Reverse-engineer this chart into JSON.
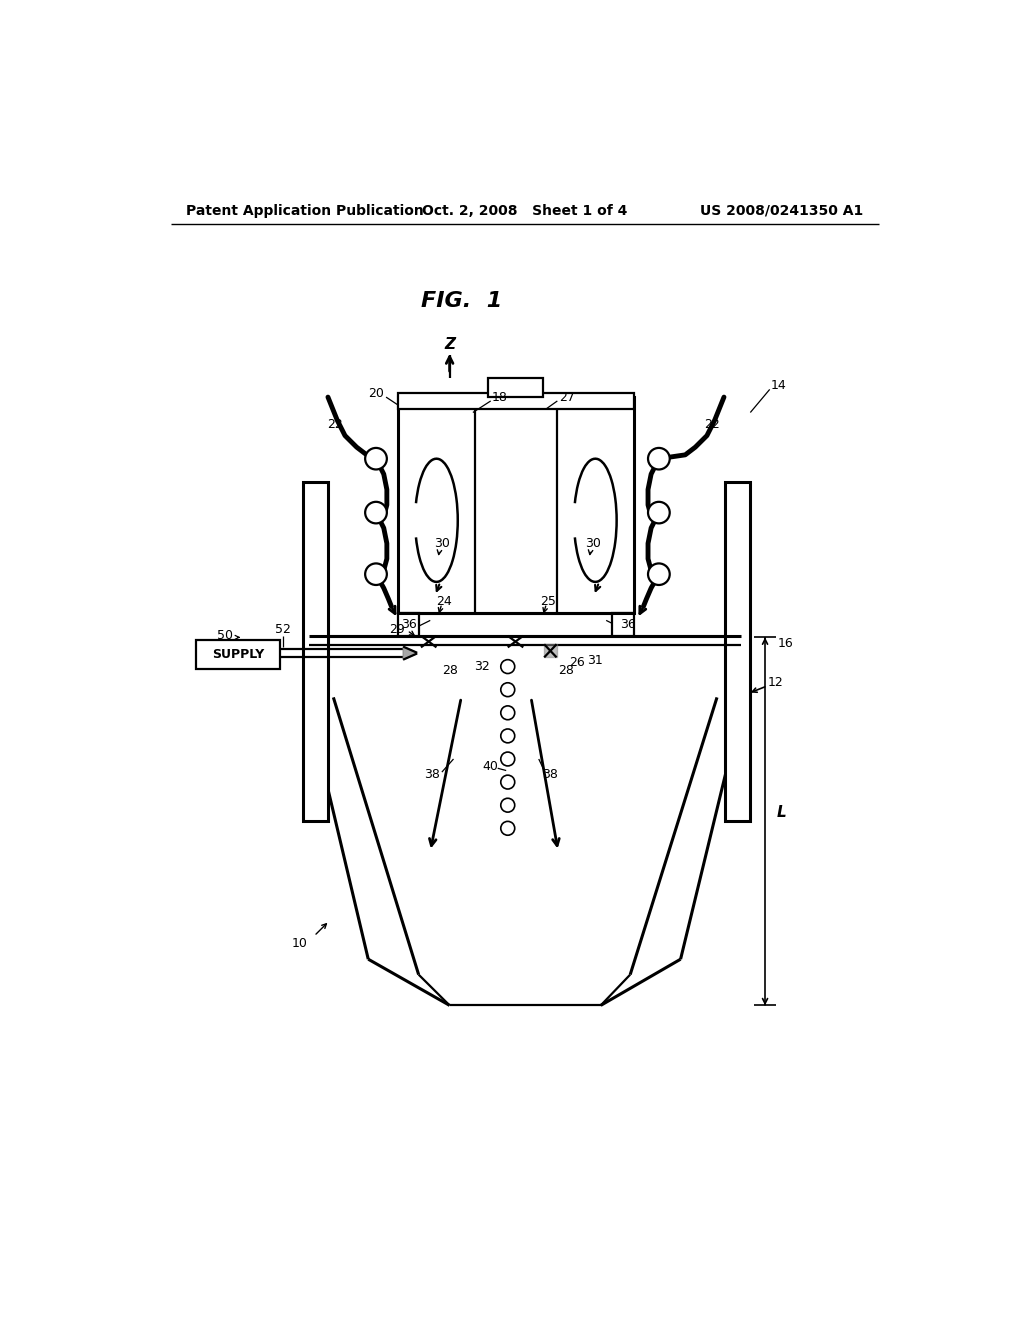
{
  "background_color": "#ffffff",
  "header_left": "Patent Application Publication",
  "header_center": "Oct. 2, 2008   Sheet 1 of 4",
  "header_right": "US 2008/0241350 A1",
  "figure_title": "FIG.  1"
}
